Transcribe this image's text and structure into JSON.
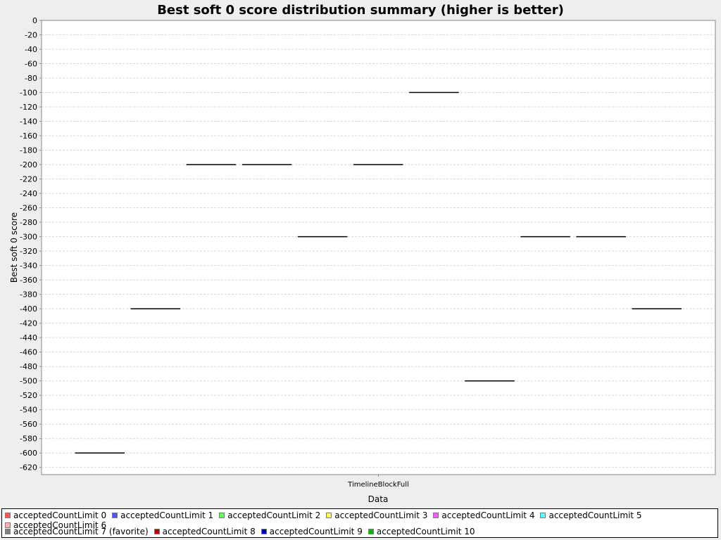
{
  "chart_data": {
    "type": "boxplot",
    "title": "Best soft 0 score distribution summary (higher is better)",
    "xlabel": "Data",
    "ylabel": "Best soft 0 score",
    "categories": [
      "TimelineBlockFull"
    ],
    "ylim": [
      -630,
      0
    ],
    "ytick_step": 20,
    "grid": true,
    "legend_position": "bottom",
    "series": [
      {
        "name": "acceptedCountLimit 0",
        "color": "#ff5555",
        "values": [
          -600
        ]
      },
      {
        "name": "acceptedCountLimit 1",
        "color": "#5555ff",
        "values": [
          -400
        ]
      },
      {
        "name": "acceptedCountLimit 2",
        "color": "#55ff55",
        "values": [
          -200
        ]
      },
      {
        "name": "acceptedCountLimit 3",
        "color": "#ffff55",
        "values": [
          -200
        ]
      },
      {
        "name": "acceptedCountLimit 4",
        "color": "#ff55ff",
        "values": [
          -300
        ]
      },
      {
        "name": "acceptedCountLimit 5",
        "color": "#55ffff",
        "values": [
          -200
        ]
      },
      {
        "name": "acceptedCountLimit 6",
        "color": "#ffafaf",
        "values": [
          -100
        ]
      },
      {
        "name": "acceptedCountLimit 7 (favorite)",
        "color": "#808080",
        "values": [
          -500
        ]
      },
      {
        "name": "acceptedCountLimit 8",
        "color": "#c00000",
        "values": [
          -300
        ]
      },
      {
        "name": "acceptedCountLimit 9",
        "color": "#0000c0",
        "values": [
          -300
        ]
      },
      {
        "name": "acceptedCountLimit 10",
        "color": "#00c000",
        "values": [
          -400
        ]
      }
    ]
  }
}
